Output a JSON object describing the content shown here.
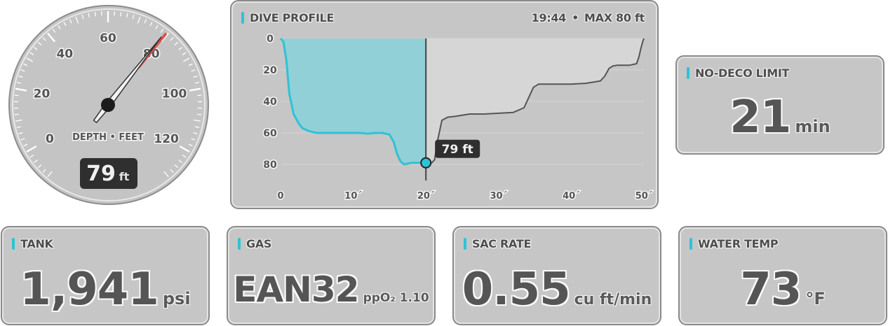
{
  "gauge": {
    "ticks": [
      "0",
      "20",
      "40",
      "60",
      "80",
      "100",
      "120"
    ],
    "label": "DEPTH • FEET",
    "value": "79",
    "unit": "ft",
    "depth_ft": 79,
    "max_marker_ft": 80,
    "colors": {
      "needle": "#f2f2f2",
      "max_marker": "#d9534f"
    }
  },
  "profile": {
    "title": "DIVE PROFILE",
    "time": "19:44",
    "separator": "•",
    "max": "MAX 80 ft",
    "y_ticks": [
      "0",
      "20",
      "40",
      "60",
      "80"
    ],
    "x_ticks": [
      "0",
      "10´",
      "20´",
      "30´",
      "40´",
      "50´"
    ],
    "cursor_label": "79 ft",
    "colors": {
      "elapsed_fill": "#91d0d6",
      "elapsed_line": "#2fc2d6",
      "remaining_fill": "#d6d6d6",
      "remaining_line": "#555555"
    }
  },
  "chart_data": {
    "type": "area",
    "title": "DIVE PROFILE",
    "xlim": [
      0,
      50
    ],
    "ylim": [
      0,
      90
    ],
    "y_inverted": true,
    "grid": true,
    "current_time": 20,
    "current_depth": 79,
    "series": [
      {
        "x": [
          0,
          0.4,
          0.8,
          1.2,
          1.8,
          2.5,
          3,
          4,
          5,
          6,
          8,
          10,
          11,
          12,
          13,
          14,
          15,
          15.6,
          16,
          16.5,
          17,
          17.5,
          18,
          19,
          20,
          20.8,
          21.2,
          21.6,
          22.2,
          23,
          24,
          26,
          28,
          30,
          32,
          33.5,
          34.2,
          34.8,
          35.5,
          37,
          40,
          42,
          44,
          44.6,
          45.2,
          45.7,
          46.3,
          48,
          49,
          49.3,
          49.6,
          49.9,
          50
        ],
        "y": [
          0,
          2,
          14,
          35,
          48,
          54,
          57,
          59,
          60,
          60,
          60,
          60,
          60,
          60.5,
          60,
          60,
          61,
          66,
          73,
          78,
          80,
          79.5,
          79,
          79,
          79,
          79,
          77,
          65,
          52,
          50,
          49.5,
          48,
          48,
          47.5,
          47,
          44,
          37,
          31,
          29,
          29,
          29,
          28.5,
          27,
          24,
          19,
          17.5,
          17,
          17,
          16,
          12,
          6,
          1,
          0
        ]
      }
    ]
  },
  "ndl": {
    "title": "NO-DECO LIMIT",
    "value": "21",
    "unit": "min"
  },
  "tank": {
    "title": "TANK",
    "value": "1,941",
    "unit": "psi"
  },
  "gas": {
    "title": "GAS",
    "value": "EAN32",
    "sub": "ppO₂ 1.10"
  },
  "sac": {
    "title": "SAC RATE",
    "value": "0.55",
    "unit": "cu ft/min"
  },
  "temp": {
    "title": "WATER TEMP",
    "value": "73",
    "unit": "°F"
  }
}
